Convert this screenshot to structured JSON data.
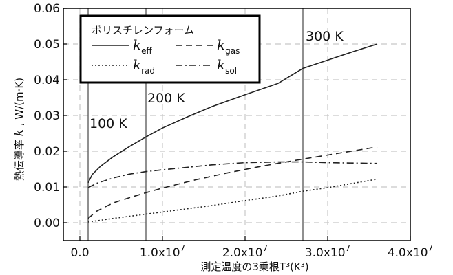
{
  "chart_data": {
    "type": "line",
    "xlabel": "測定温度の3乗根T³(K³)",
    "ylabel_prefix": "熱伝導率  ",
    "ylabel_k": "k",
    "ylabel_unit": ", W/(m·K)",
    "xlim": [
      -2000000.0,
      40000000.0
    ],
    "ylim": [
      -0.005,
      0.06
    ],
    "xticks": [
      {
        "value": 0.0,
        "label": "0.0"
      },
      {
        "value": 10000000.0,
        "label": "1.0x10"
      },
      {
        "value": 20000000.0,
        "label": "2.0x10"
      },
      {
        "value": 30000000.0,
        "label": "3.0x10"
      },
      {
        "value": 40000000.0,
        "label": "4.0x10"
      }
    ],
    "xtick_exponent": "7",
    "yticks": [
      {
        "value": 0.0,
        "label": "0.00"
      },
      {
        "value": 0.01,
        "label": "0.01"
      },
      {
        "value": 0.02,
        "label": "0.02"
      },
      {
        "value": 0.03,
        "label": "0.03"
      },
      {
        "value": 0.04,
        "label": "0.04"
      },
      {
        "value": 0.05,
        "label": "0.05"
      },
      {
        "value": 0.06,
        "label": "0.06"
      }
    ],
    "grid": true,
    "legend_title": "ポリスチレンフォーム",
    "legend_position": "top-left",
    "series": [
      {
        "key": "eff",
        "symbol": "k",
        "subscript": "eff",
        "dash": "solid",
        "points": [
          [
            1000000.0,
            0.0112
          ],
          [
            1500000.0,
            0.0135
          ],
          [
            2500000.0,
            0.0158
          ],
          [
            4000000.0,
            0.0184
          ],
          [
            6000000.0,
            0.0213
          ],
          [
            8000000.0,
            0.024
          ],
          [
            10000000.0,
            0.0265
          ],
          [
            13000000.0,
            0.0296
          ],
          [
            16000000.0,
            0.0325
          ],
          [
            20000000.0,
            0.0358
          ],
          [
            24000000.0,
            0.039
          ],
          [
            27000000.0,
            0.0432
          ],
          [
            30000000.0,
            0.0455
          ],
          [
            33000000.0,
            0.0478
          ],
          [
            36000000.0,
            0.05
          ]
        ]
      },
      {
        "key": "gas",
        "symbol": "k",
        "subscript": "gas",
        "dash": "dashed",
        "points": [
          [
            1000000.0,
            0.0012
          ],
          [
            2000000.0,
            0.0032
          ],
          [
            4000000.0,
            0.0055
          ],
          [
            6000000.0,
            0.007
          ],
          [
            8000000.0,
            0.0084
          ],
          [
            10000000.0,
            0.0097
          ],
          [
            14000000.0,
            0.012
          ],
          [
            18000000.0,
            0.014
          ],
          [
            22000000.0,
            0.0158
          ],
          [
            27000000.0,
            0.0178
          ],
          [
            31000000.0,
            0.0193
          ],
          [
            36000000.0,
            0.0212
          ]
        ]
      },
      {
        "key": "rad",
        "symbol": "k",
        "subscript": "rad",
        "dash": "dotted",
        "points": [
          [
            1000000.0,
            0.0002
          ],
          [
            4000000.0,
            0.0012
          ],
          [
            8000000.0,
            0.0024
          ],
          [
            12000000.0,
            0.0036
          ],
          [
            16000000.0,
            0.0048
          ],
          [
            20000000.0,
            0.0062
          ],
          [
            24000000.0,
            0.0075
          ],
          [
            27000000.0,
            0.0088
          ],
          [
            30000000.0,
            0.0098
          ],
          [
            33000000.0,
            0.011
          ],
          [
            36000000.0,
            0.0122
          ]
        ]
      },
      {
        "key": "sol",
        "symbol": "k",
        "subscript": "sol",
        "dash": "dashdot",
        "points": [
          [
            1000000.0,
            0.0098
          ],
          [
            2000000.0,
            0.011
          ],
          [
            4000000.0,
            0.0125
          ],
          [
            6000000.0,
            0.0136
          ],
          [
            8000000.0,
            0.0143
          ],
          [
            10000000.0,
            0.0148
          ],
          [
            13000000.0,
            0.0155
          ],
          [
            16000000.0,
            0.0162
          ],
          [
            20000000.0,
            0.0168
          ],
          [
            24000000.0,
            0.017
          ],
          [
            27000000.0,
            0.017
          ],
          [
            30000000.0,
            0.0168
          ],
          [
            33000000.0,
            0.0167
          ],
          [
            36000000.0,
            0.0166
          ]
        ]
      }
    ],
    "annotations": [
      {
        "x": 1000000.0,
        "label": "100 K"
      },
      {
        "x": 8000000.0,
        "label": "200 K"
      },
      {
        "x": 27000000.0,
        "label": "300 K"
      }
    ],
    "colors": {
      "line": "#222222",
      "grid": "#c8c8c8",
      "frame": "#000000"
    }
  }
}
